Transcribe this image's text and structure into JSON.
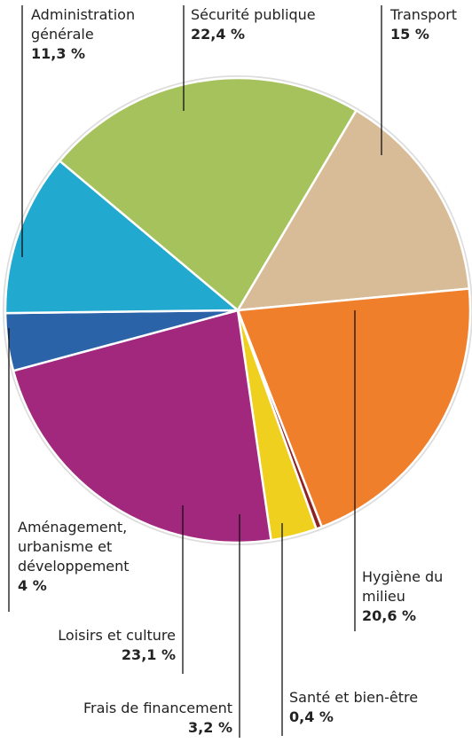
{
  "chart_data": {
    "type": "pie",
    "categories": [
      "Sécurité publique",
      "Transport",
      "Hygiène du milieu",
      "Santé et bien-être",
      "Frais de financement",
      "Loisirs et culture",
      "Aménagement, urbanisme et développement",
      "Administration générale"
    ],
    "values": [
      22.4,
      15,
      20.6,
      0.4,
      3.2,
      23.1,
      4,
      11.3
    ],
    "value_labels": [
      "22,4 %",
      "15 %",
      "20,6 %",
      "0,4 %",
      "3,2 %",
      "23,1 %",
      "4 %",
      "11,3 %"
    ],
    "colors": [
      "#a6c25c",
      "#d8bc97",
      "#f07f2c",
      "#8e2323",
      "#f0d01e",
      "#a2287e",
      "#2b63a8",
      "#22a9cf"
    ]
  }
}
